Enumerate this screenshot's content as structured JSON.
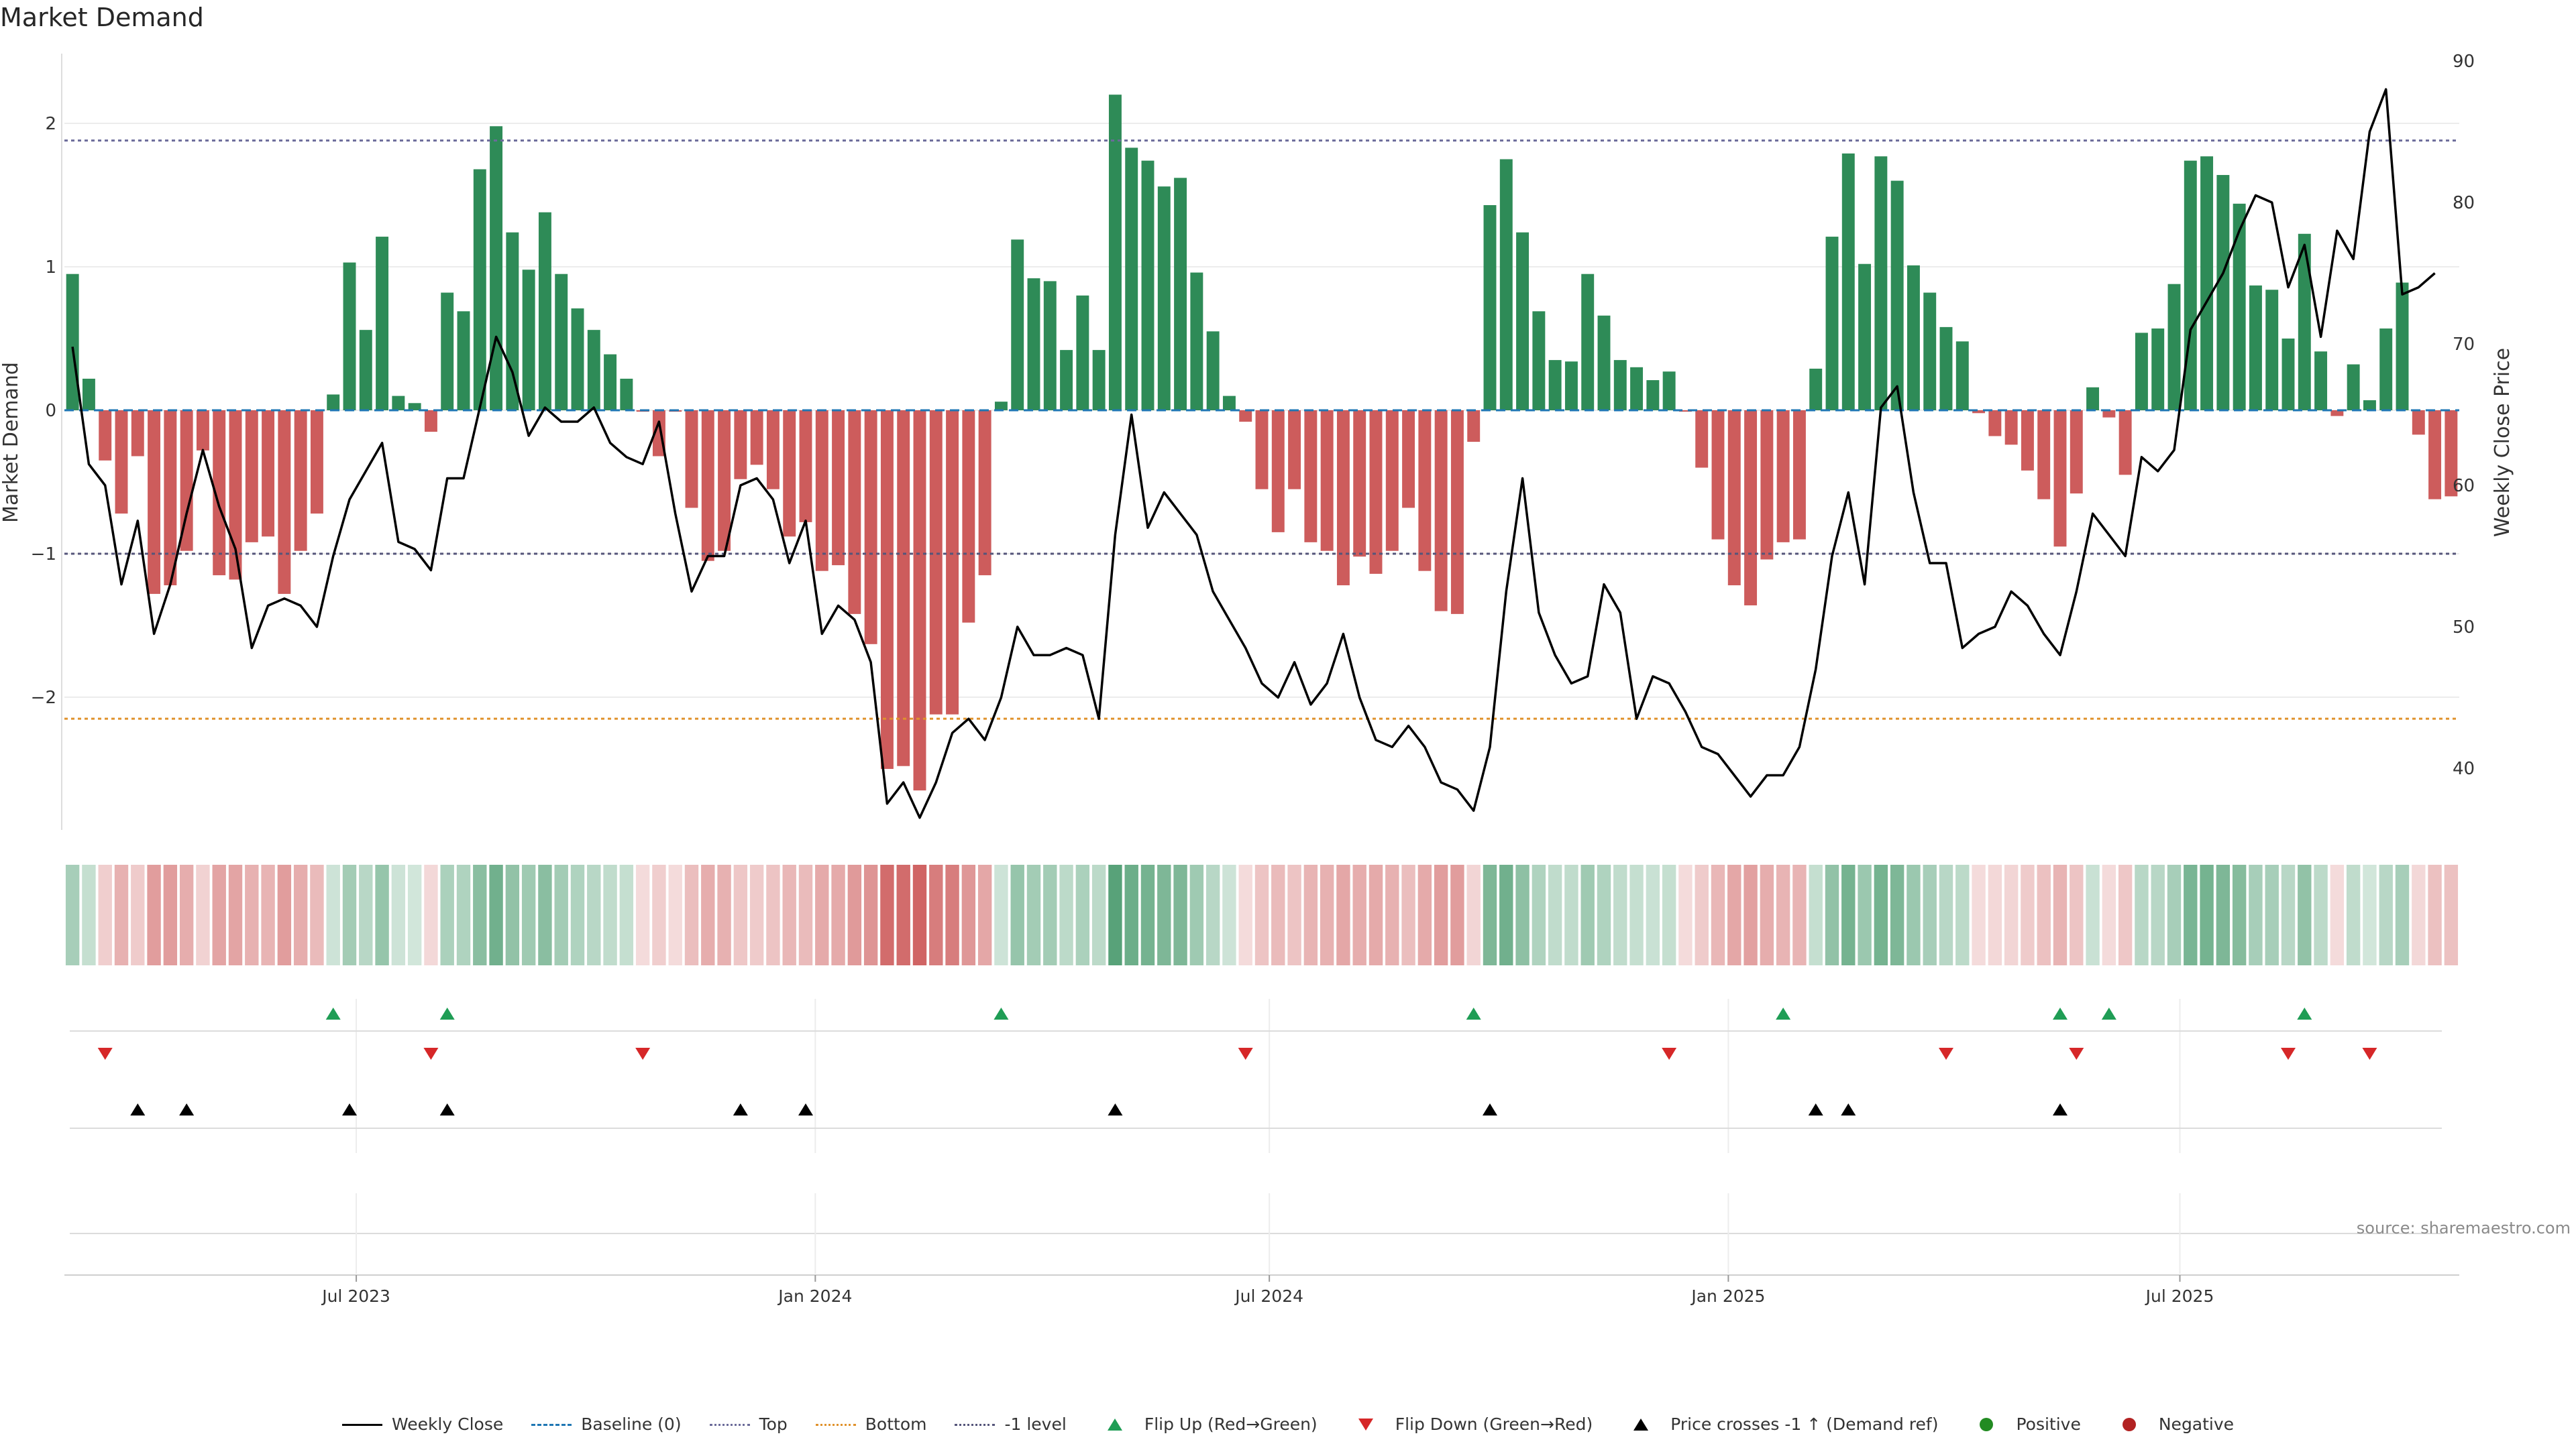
{
  "title": "Market Demand",
  "source": "source: sharemaestro.com",
  "colors": {
    "positive": "#2e8b57",
    "negative": "#cd5c5c",
    "price": "#000000",
    "baseline": "#1f77b4",
    "top": "#6b6b9a",
    "bottom": "#e0922c",
    "minus1": "#55557a",
    "flip_up": "#1f9d55",
    "flip_down": "#d62728",
    "cross": "#000000",
    "dot_pos": "#228b22",
    "dot_neg": "#b22222"
  },
  "legend": [
    {
      "label": "Weekly Close",
      "symbol": "line-solid",
      "color": "#000000"
    },
    {
      "label": "Baseline (0)",
      "symbol": "line-dashed",
      "color": "#1f77b4"
    },
    {
      "label": "Top",
      "symbol": "line-dotted",
      "color": "#6b6b9a"
    },
    {
      "label": "Bottom",
      "symbol": "line-dotted",
      "color": "#e0922c"
    },
    {
      "label": "-1 level",
      "symbol": "line-dotted",
      "color": "#55557a"
    },
    {
      "label": "Flip Up (Red→Green)",
      "symbol": "tri-up",
      "color": "#1f9d55"
    },
    {
      "label": "Flip Down (Green→Red)",
      "symbol": "tri-down",
      "color": "#d62728"
    },
    {
      "label": "Price crosses -1 ↑ (Demand ref)",
      "symbol": "tri-up",
      "color": "#000000"
    },
    {
      "label": "Positive",
      "symbol": "dot",
      "color": "#228b22"
    },
    {
      "label": "Negative",
      "symbol": "dot",
      "color": "#b22222"
    }
  ],
  "chart_data": {
    "type": "bar",
    "title": "Market Demand",
    "ylabel": "Market Demand",
    "y2label": "Weekly Close Price",
    "ylim": [
      -2.9,
      2.5
    ],
    "y2lim": [
      35,
      90
    ],
    "yticks": [
      2,
      1,
      0,
      -1,
      -2
    ],
    "ytick_labels": [
      "2",
      "1",
      "0",
      "−1",
      "−2"
    ],
    "y2ticks": [
      90,
      80,
      70,
      60,
      50,
      40
    ],
    "y2tick_labels": [
      "90",
      "80",
      "70",
      "60",
      "50",
      "40"
    ],
    "start_date": "2023-03-06",
    "end_date": "2025-10-21",
    "x_ticks": [
      {
        "date": "2023-07-01",
        "label": "Jul 2023"
      },
      {
        "date": "2024-01-01",
        "label": "Jan 2024"
      },
      {
        "date": "2024-07-01",
        "label": "Jul 2024"
      },
      {
        "date": "2025-01-01",
        "label": "Jan 2025"
      },
      {
        "date": "2025-07-01",
        "label": "Jul 2025"
      }
    ],
    "reference_lines": {
      "baseline": 0,
      "top": 1.88,
      "bottom": -2.15,
      "minus_one": -1
    },
    "demand": [
      0.95,
      0.22,
      -0.35,
      -0.72,
      -0.32,
      -1.28,
      -1.22,
      -0.98,
      -0.28,
      -1.15,
      -1.18,
      -0.92,
      -0.88,
      -1.28,
      -0.98,
      -0.72,
      0.11,
      1.03,
      0.56,
      1.21,
      0.1,
      0.05,
      -0.15,
      0.82,
      0.69,
      1.68,
      1.98,
      1.24,
      0.98,
      1.38,
      0.95,
      0.71,
      0.56,
      0.39,
      0.22,
      -0.01,
      -0.32,
      -0.01,
      -0.68,
      -1.05,
      -0.98,
      -0.48,
      -0.38,
      -0.55,
      -0.88,
      -0.78,
      -1.12,
      -1.08,
      -1.42,
      -1.63,
      -2.5,
      -2.48,
      -2.65,
      -2.12,
      -2.12,
      -1.48,
      -1.15,
      0.06,
      1.19,
      0.92,
      0.9,
      0.42,
      0.8,
      0.42,
      2.2,
      1.83,
      1.74,
      1.56,
      1.62,
      0.96,
      0.55,
      0.1,
      -0.08,
      -0.55,
      -0.85,
      -0.55,
      -0.92,
      -0.98,
      -1.22,
      -1.02,
      -1.14,
      -0.98,
      -0.68,
      -1.12,
      -1.4,
      -1.42,
      -0.22,
      1.43,
      1.75,
      1.24,
      0.69,
      0.35,
      0.34,
      0.95,
      0.66,
      0.35,
      0.3,
      0.21,
      0.27,
      -0.01,
      -0.4,
      -0.9,
      -1.22,
      -1.36,
      -1.04,
      -0.92,
      -0.9,
      0.29,
      1.21,
      1.79,
      1.02,
      1.77,
      1.6,
      1.01,
      0.82,
      0.58,
      0.48,
      -0.02,
      -0.18,
      -0.24,
      -0.42,
      -0.62,
      -0.95,
      -0.58,
      0.16,
      -0.05,
      -0.45,
      0.54,
      0.57,
      0.88,
      1.74,
      1.77,
      1.64,
      1.44,
      0.87,
      0.84,
      0.5,
      1.23,
      0.41,
      -0.04,
      0.32,
      0.07,
      0.57,
      0.89,
      -0.17,
      -0.62,
      -0.6
    ],
    "weekly_close": [
      69.8,
      61.5,
      60,
      53,
      57.5,
      49.5,
      53,
      58,
      62.5,
      58.5,
      55.5,
      48.5,
      51.5,
      52,
      51.5,
      50,
      55,
      59,
      61,
      63,
      56,
      55.5,
      54,
      60.5,
      60.5,
      65.5,
      70.5,
      68,
      63.5,
      65.5,
      64.5,
      64.5,
      65.5,
      63,
      62,
      61.5,
      64.5,
      58,
      52.5,
      55,
      55,
      60,
      60.5,
      59,
      54.5,
      57.5,
      49.5,
      51.5,
      50.5,
      47.5,
      37.5,
      39,
      36.5,
      39,
      42.5,
      43.5,
      42,
      45,
      50,
      48,
      48,
      48.5,
      48,
      43.5,
      56.5,
      65,
      57,
      59.5,
      58,
      56.5,
      52.5,
      50.5,
      48.5,
      46,
      45,
      47.5,
      44.5,
      46,
      49.5,
      45,
      42,
      41.5,
      43,
      41.5,
      39,
      38.5,
      37,
      41.5,
      52.5,
      60.5,
      51,
      48,
      46,
      46.5,
      53,
      51,
      43.5,
      46.5,
      46,
      44,
      41.5,
      41,
      39.5,
      38,
      39.5,
      39.5,
      41.5,
      47,
      55,
      59.5,
      53,
      65.5,
      67,
      59.5,
      54.5,
      54.5,
      48.5,
      49.5,
      50,
      52.5,
      51.5,
      49.5,
      48,
      52.5,
      58,
      56.5,
      55,
      62,
      61,
      62.5,
      71,
      73,
      75,
      78,
      80.5,
      80,
      74,
      77,
      70.5,
      78,
      76,
      85,
      88,
      73.5,
      74,
      75
    ]
  },
  "sign_strip": [
    [
      0.42,
      0.28,
      -0.3,
      -0.48,
      -0.32,
      -0.6,
      -0.6,
      -0.5,
      -0.28,
      -0.56,
      -0.56,
      -0.48,
      -0.46,
      -0.6,
      -0.5,
      -0.42,
      0.24,
      0.44,
      0.34,
      0.5,
      0.24,
      0.22,
      -0.24,
      0.4,
      0.38,
      0.56,
      0.68,
      0.52,
      0.46,
      0.56,
      0.44,
      0.38,
      0.34,
      0.3,
      0.28,
      -0.22,
      -0.3,
      -0.22,
      -0.4,
      -0.5,
      -0.48,
      -0.34,
      -0.32,
      -0.36,
      -0.44,
      -0.42,
      -0.52,
      -0.52,
      -0.62,
      -0.66,
      -0.9,
      -0.9,
      -0.95,
      -0.8,
      -0.8,
      -0.64,
      -0.54,
      0.24,
      0.5,
      0.44,
      0.44,
      0.32,
      0.4,
      0.32,
      0.8,
      0.7,
      0.66,
      0.62,
      0.62,
      0.46,
      0.34,
      0.24,
      -0.22,
      -0.36,
      -0.42,
      -0.36,
      -0.46,
      -0.48,
      -0.54,
      -0.5,
      -0.52,
      -0.48,
      -0.4,
      -0.52,
      -0.6,
      -0.6,
      -0.26,
      0.62,
      0.68,
      0.54,
      0.38,
      0.3,
      0.3,
      0.46,
      0.38,
      0.3,
      0.28,
      0.26,
      0.28,
      -0.22,
      -0.32,
      -0.44,
      -0.54,
      -0.58,
      -0.5,
      -0.46,
      -0.46,
      0.28,
      0.52,
      0.66,
      0.48,
      0.66,
      0.62,
      0.48,
      0.42,
      0.34,
      0.32,
      -0.22,
      -0.24,
      -0.26,
      -0.32,
      -0.38,
      -0.46,
      -0.36,
      0.26,
      -0.22,
      -0.34,
      0.34,
      0.34,
      0.42,
      0.64,
      0.66,
      0.62,
      0.58,
      0.42,
      0.42,
      0.34,
      0.52,
      0.32,
      -0.22,
      0.3,
      0.22,
      0.34,
      0.42,
      -0.24,
      -0.38,
      -0.38
    ]
  ],
  "flip_up_weeks": [
    16,
    23,
    57,
    86,
    105,
    122,
    125,
    137
  ],
  "flip_down_weeks": [
    2,
    22,
    35,
    72,
    98,
    115,
    123,
    136,
    141
  ],
  "price_cross_weeks": [
    4,
    7,
    17,
    23,
    41,
    45,
    64,
    87,
    107,
    109,
    122
  ],
  "date_lines": [
    "2023-07-01",
    "2024-01-01",
    "2024-07-01",
    "2025-01-01",
    "2025-07-01"
  ]
}
